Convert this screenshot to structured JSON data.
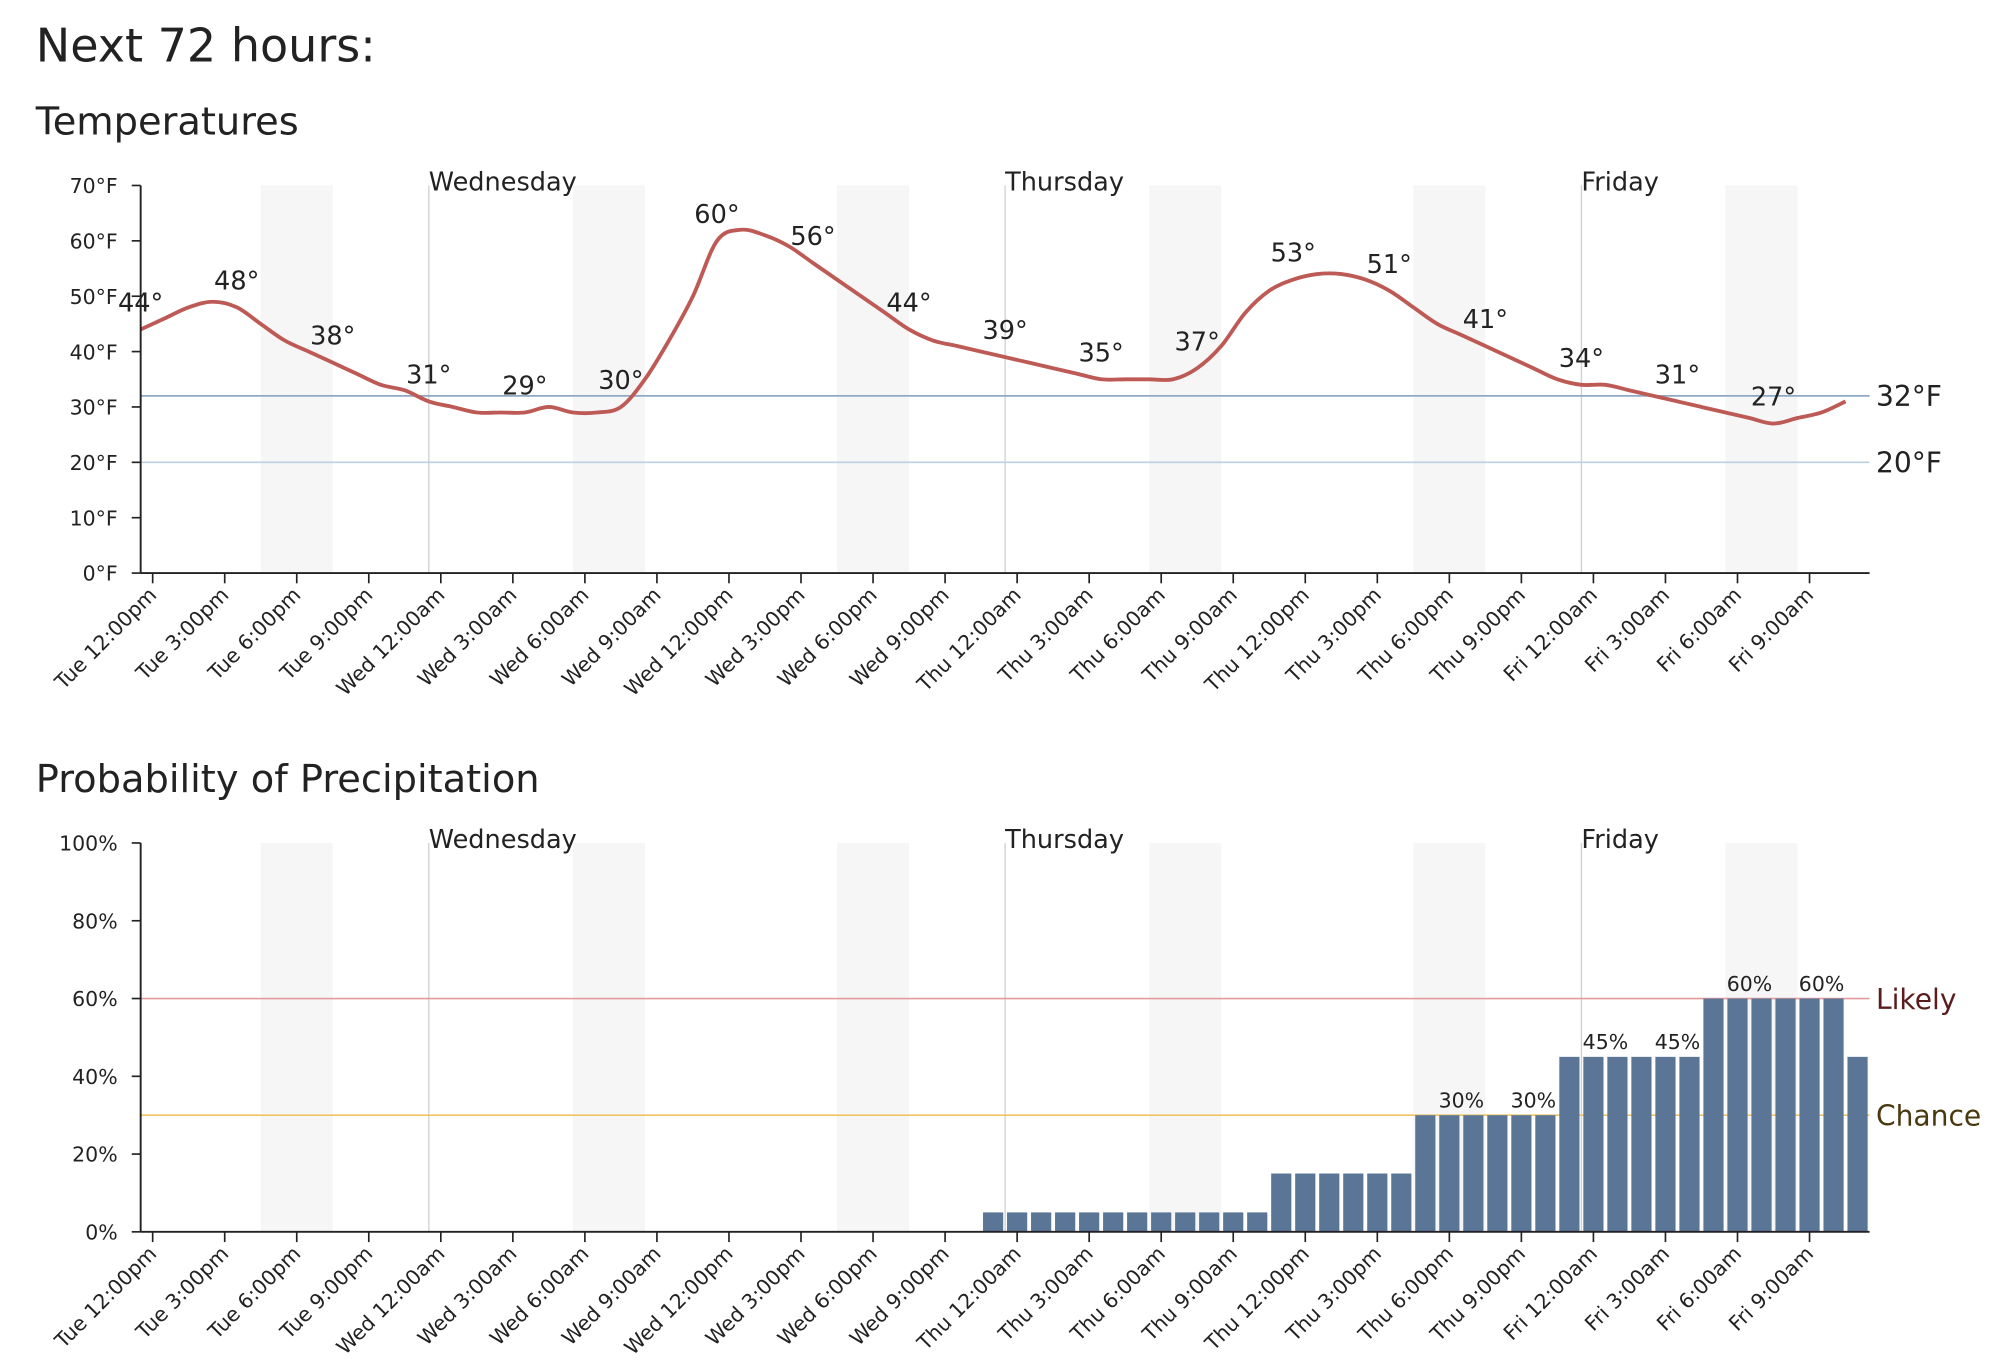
{
  "title": "Next 72 hours:",
  "chart_data": [
    {
      "type": "line",
      "title": "Temperatures",
      "color": "#bd5a55",
      "categories": [
        "Tue 12:00pm",
        null,
        null,
        "Tue 3:00pm",
        null,
        null,
        "Tue 6:00pm",
        null,
        null,
        "Tue 9:00pm",
        null,
        null,
        "Wed 12:00am",
        null,
        null,
        "Wed 3:00am",
        null,
        null,
        "Wed 6:00am",
        null,
        null,
        "Wed 9:00am",
        null,
        null,
        "Wed 12:00pm",
        null,
        null,
        "Wed 3:00pm",
        null,
        null,
        "Wed 6:00pm",
        null,
        null,
        "Wed 9:00pm",
        null,
        null,
        "Thu 12:00am",
        null,
        null,
        "Thu 3:00am",
        null,
        null,
        "Thu 6:00am",
        null,
        null,
        "Thu 9:00am",
        null,
        null,
        "Thu 12:00pm",
        null,
        null,
        "Thu 3:00pm",
        null,
        null,
        "Thu 6:00pm",
        null,
        null,
        "Thu 9:00pm",
        null,
        null,
        "Fri 12:00am",
        null,
        null,
        "Fri 3:00am",
        null,
        null,
        "Fri 6:00am",
        null,
        null,
        "Fri 9:00am",
        null,
        null
      ],
      "values": [
        44,
        46,
        48,
        49,
        48,
        45,
        42,
        40,
        38,
        36,
        34,
        33,
        31,
        30,
        29,
        29,
        29,
        30,
        29,
        29,
        30,
        35,
        42,
        50,
        60,
        62,
        61,
        59,
        56,
        53,
        50,
        47,
        44,
        42,
        41,
        40,
        39,
        38,
        37,
        36,
        35,
        35,
        35,
        35,
        37,
        41,
        47,
        51,
        53,
        54,
        54,
        53,
        51,
        48,
        45,
        43,
        41,
        39,
        37,
        35,
        34,
        34,
        33,
        32,
        31,
        30,
        29,
        28,
        27,
        28,
        29,
        31
      ],
      "value_labels": [
        "44°",
        null,
        null,
        null,
        "48°",
        null,
        null,
        null,
        "38°",
        null,
        null,
        null,
        "31°",
        null,
        null,
        null,
        "29°",
        null,
        null,
        null,
        "30°",
        null,
        null,
        null,
        "60°",
        null,
        null,
        null,
        "56°",
        null,
        null,
        null,
        "44°",
        null,
        null,
        null,
        "39°",
        null,
        null,
        null,
        "35°",
        null,
        null,
        null,
        "37°",
        null,
        null,
        null,
        "53°",
        null,
        null,
        null,
        "51°",
        null,
        null,
        null,
        "41°",
        null,
        null,
        null,
        "34°",
        null,
        null,
        null,
        "31°",
        null,
        null,
        null,
        "27°",
        null,
        null,
        null
      ],
      "ylim": [
        0,
        70
      ],
      "yticks": [
        {
          "value": 0,
          "label": "0°F"
        },
        {
          "value": 10,
          "label": "10°F"
        },
        {
          "value": 20,
          "label": "20°F"
        },
        {
          "value": 30,
          "label": "30°F"
        },
        {
          "value": 40,
          "label": "40°F"
        },
        {
          "value": 50,
          "label": "50°F"
        },
        {
          "value": 60,
          "label": "60°F"
        },
        {
          "value": 70,
          "label": "70°F"
        }
      ],
      "reference_lines": [
        {
          "value": 32,
          "label": "32°F",
          "color": "#8fa9c4"
        },
        {
          "value": 20,
          "label": "20°F",
          "color": "#bcd0e3"
        }
      ],
      "day_labels": [
        "Wednesday",
        "Thursday",
        "Friday"
      ]
    },
    {
      "type": "bar",
      "title": "Probability of Precipitation",
      "color": "#5a7596",
      "categories": [
        "Tue 12:00pm",
        null,
        null,
        "Tue 3:00pm",
        null,
        null,
        "Tue 6:00pm",
        null,
        null,
        "Tue 9:00pm",
        null,
        null,
        "Wed 12:00am",
        null,
        null,
        "Wed 3:00am",
        null,
        null,
        "Wed 6:00am",
        null,
        null,
        "Wed 9:00am",
        null,
        null,
        "Wed 12:00pm",
        null,
        null,
        "Wed 3:00pm",
        null,
        null,
        "Wed 6:00pm",
        null,
        null,
        "Wed 9:00pm",
        null,
        null,
        "Thu 12:00am",
        null,
        null,
        "Thu 3:00am",
        null,
        null,
        "Thu 6:00am",
        null,
        null,
        "Thu 9:00am",
        null,
        null,
        "Thu 12:00pm",
        null,
        null,
        "Thu 3:00pm",
        null,
        null,
        "Thu 6:00pm",
        null,
        null,
        "Thu 9:00pm",
        null,
        null,
        "Fri 12:00am",
        null,
        null,
        "Fri 3:00am",
        null,
        null,
        "Fri 6:00am",
        null,
        null,
        "Fri 9:00am",
        null,
        null
      ],
      "values": [
        0,
        0,
        0,
        0,
        0,
        0,
        0,
        0,
        0,
        0,
        0,
        0,
        0,
        0,
        0,
        0,
        0,
        0,
        0,
        0,
        0,
        0,
        0,
        0,
        0,
        0,
        0,
        0,
        0,
        0,
        0,
        0,
        0,
        0,
        0,
        5,
        5,
        5,
        5,
        5,
        5,
        5,
        5,
        5,
        5,
        5,
        5,
        15,
        15,
        15,
        15,
        15,
        15,
        30,
        30,
        30,
        30,
        30,
        30,
        45,
        45,
        45,
        45,
        45,
        45,
        60,
        60,
        60,
        60,
        60,
        60,
        45
      ],
      "value_labels": [
        null,
        null,
        null,
        null,
        null,
        null,
        null,
        null,
        null,
        null,
        null,
        null,
        null,
        null,
        null,
        null,
        null,
        null,
        null,
        null,
        null,
        null,
        null,
        null,
        null,
        null,
        null,
        null,
        null,
        null,
        null,
        null,
        null,
        null,
        null,
        null,
        null,
        null,
        null,
        null,
        null,
        null,
        null,
        null,
        null,
        null,
        null,
        null,
        null,
        null,
        null,
        null,
        null,
        null,
        null,
        "30%",
        null,
        null,
        "30%",
        null,
        null,
        "45%",
        null,
        null,
        "45%",
        null,
        null,
        "60%",
        null,
        null,
        "60%",
        null
      ],
      "ylim": [
        0,
        100
      ],
      "yticks": [
        {
          "value": 0,
          "label": "0%"
        },
        {
          "value": 20,
          "label": "20%"
        },
        {
          "value": 40,
          "label": "40%"
        },
        {
          "value": 60,
          "label": "60%"
        },
        {
          "value": 80,
          "label": "80%"
        },
        {
          "value": 100,
          "label": "100%"
        }
      ],
      "reference_lines": [
        {
          "value": 60,
          "label": "Likely",
          "color": "#e39b9b",
          "text_color": "#5a1d1d"
        },
        {
          "value": 30,
          "label": "Chance",
          "color": "#f0c465",
          "text_color": "#4a3810"
        }
      ],
      "day_labels": [
        "Wednesday",
        "Thursday",
        "Friday"
      ]
    }
  ]
}
